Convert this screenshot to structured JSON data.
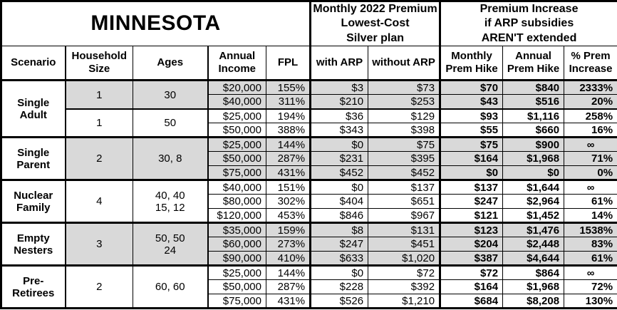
{
  "title": "MINNESOTA",
  "header_groups": {
    "premium_2022": "Monthly 2022 Premium\nLowest-Cost\nSilver plan",
    "premium_increase": "Premium Increase\nif ARP subsidies\nAREN'T extended"
  },
  "columns": [
    "Scenario",
    "Household\nSize",
    "Ages",
    "Annual\nIncome",
    "FPL",
    "with ARP",
    "without ARP",
    "Monthly\nPrem Hike",
    "Annual\nPrem Hike",
    "% Prem\nIncrease"
  ],
  "colors": {
    "shaded_row": "#d9d9d9",
    "border": "#000000",
    "background": "#ffffff"
  },
  "scenarios": [
    {
      "name": "Single\nAdult",
      "subgroups": [
        {
          "household_size": "1",
          "ages": "30",
          "shaded": true,
          "rows": [
            {
              "income": "$20,000",
              "fpl": "155%",
              "with_arp": "$3",
              "without_arp": "$73",
              "monthly_hike": "$70",
              "annual_hike": "$840",
              "pct_increase": "2333%"
            },
            {
              "income": "$40,000",
              "fpl": "311%",
              "with_arp": "$210",
              "without_arp": "$253",
              "monthly_hike": "$43",
              "annual_hike": "$516",
              "pct_increase": "20%"
            }
          ]
        },
        {
          "household_size": "1",
          "ages": "50",
          "shaded": false,
          "rows": [
            {
              "income": "$25,000",
              "fpl": "194%",
              "with_arp": "$36",
              "without_arp": "$129",
              "monthly_hike": "$93",
              "annual_hike": "$1,116",
              "pct_increase": "258%"
            },
            {
              "income": "$50,000",
              "fpl": "388%",
              "with_arp": "$343",
              "without_arp": "$398",
              "monthly_hike": "$55",
              "annual_hike": "$660",
              "pct_increase": "16%"
            }
          ]
        }
      ]
    },
    {
      "name": "Single\nParent",
      "subgroups": [
        {
          "household_size": "2",
          "ages": "30, 8",
          "shaded": true,
          "rows": [
            {
              "income": "$25,000",
              "fpl": "144%",
              "with_arp": "$0",
              "without_arp": "$75",
              "monthly_hike": "$75",
              "annual_hike": "$900",
              "pct_increase": "∞"
            },
            {
              "income": "$50,000",
              "fpl": "287%",
              "with_arp": "$231",
              "without_arp": "$395",
              "monthly_hike": "$164",
              "annual_hike": "$1,968",
              "pct_increase": "71%"
            },
            {
              "income": "$75,000",
              "fpl": "431%",
              "with_arp": "$452",
              "without_arp": "$452",
              "monthly_hike": "$0",
              "annual_hike": "$0",
              "pct_increase": "0%"
            }
          ]
        }
      ]
    },
    {
      "name": "Nuclear\nFamily",
      "subgroups": [
        {
          "household_size": "4",
          "ages": "40, 40\n15, 12",
          "shaded": false,
          "rows": [
            {
              "income": "$40,000",
              "fpl": "151%",
              "with_arp": "$0",
              "without_arp": "$137",
              "monthly_hike": "$137",
              "annual_hike": "$1,644",
              "pct_increase": "∞"
            },
            {
              "income": "$80,000",
              "fpl": "302%",
              "with_arp": "$404",
              "without_arp": "$651",
              "monthly_hike": "$247",
              "annual_hike": "$2,964",
              "pct_increase": "61%"
            },
            {
              "income": "$120,000",
              "fpl": "453%",
              "with_arp": "$846",
              "without_arp": "$967",
              "monthly_hike": "$121",
              "annual_hike": "$1,452",
              "pct_increase": "14%"
            }
          ]
        }
      ]
    },
    {
      "name": "Empty\nNesters",
      "subgroups": [
        {
          "household_size": "3",
          "ages": "50, 50\n24",
          "shaded": true,
          "rows": [
            {
              "income": "$35,000",
              "fpl": "159%",
              "with_arp": "$8",
              "without_arp": "$131",
              "monthly_hike": "$123",
              "annual_hike": "$1,476",
              "pct_increase": "1538%"
            },
            {
              "income": "$60,000",
              "fpl": "273%",
              "with_arp": "$247",
              "without_arp": "$451",
              "monthly_hike": "$204",
              "annual_hike": "$2,448",
              "pct_increase": "83%"
            },
            {
              "income": "$90,000",
              "fpl": "410%",
              "with_arp": "$633",
              "without_arp": "$1,020",
              "monthly_hike": "$387",
              "annual_hike": "$4,644",
              "pct_increase": "61%"
            }
          ]
        }
      ]
    },
    {
      "name": "Pre-\nRetirees",
      "subgroups": [
        {
          "household_size": "2",
          "ages": "60, 60",
          "shaded": false,
          "rows": [
            {
              "income": "$25,000",
              "fpl": "144%",
              "with_arp": "$0",
              "without_arp": "$72",
              "monthly_hike": "$72",
              "annual_hike": "$864",
              "pct_increase": "∞"
            },
            {
              "income": "$50,000",
              "fpl": "287%",
              "with_arp": "$228",
              "without_arp": "$392",
              "monthly_hike": "$164",
              "annual_hike": "$1,968",
              "pct_increase": "72%"
            },
            {
              "income": "$75,000",
              "fpl": "431%",
              "with_arp": "$526",
              "without_arp": "$1,210",
              "monthly_hike": "$684",
              "annual_hike": "$8,208",
              "pct_increase": "130%"
            }
          ]
        }
      ]
    }
  ]
}
